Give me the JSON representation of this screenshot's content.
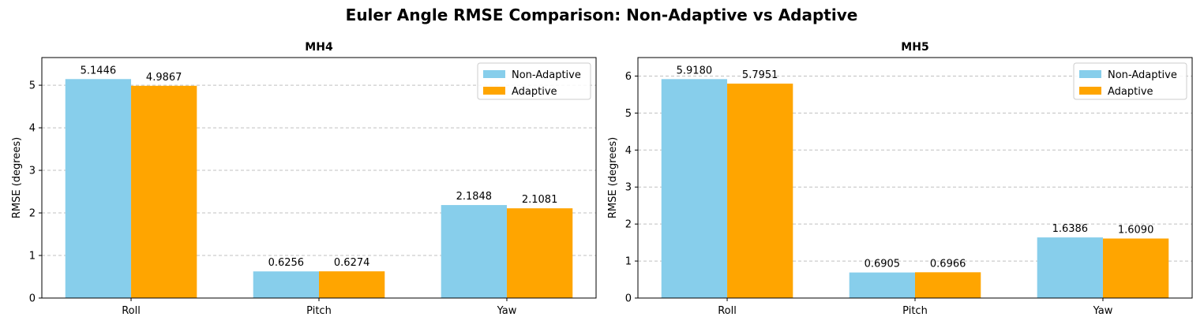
{
  "figure": {
    "suptitle": "Euler Angle RMSE Comparison: Non-Adaptive vs Adaptive"
  },
  "chart_data": [
    {
      "type": "bar",
      "title": "MH4",
      "xlabel": "",
      "ylabel": "RMSE (degrees)",
      "categories": [
        "Roll",
        "Pitch",
        "Yaw"
      ],
      "series": [
        {
          "name": "Non-Adaptive",
          "color": "#87ceeb",
          "values": [
            5.1446,
            0.6256,
            2.1848
          ]
        },
        {
          "name": "Adaptive",
          "color": "#ffa500",
          "values": [
            4.9867,
            0.6274,
            2.1081
          ]
        }
      ],
      "value_labels": [
        [
          "5.1446",
          "0.6256",
          "2.1848"
        ],
        [
          "4.9867",
          "0.6274",
          "2.1081"
        ]
      ],
      "ylim": [
        0,
        5.65
      ],
      "yticks": [
        0,
        1,
        2,
        3,
        4,
        5
      ],
      "grid": "y-dashed",
      "legend": "top-right"
    },
    {
      "type": "bar",
      "title": "MH5",
      "xlabel": "",
      "ylabel": "RMSE (degrees)",
      "categories": [
        "Roll",
        "Pitch",
        "Yaw"
      ],
      "series": [
        {
          "name": "Non-Adaptive",
          "color": "#87ceeb",
          "values": [
            5.918,
            0.6905,
            1.6386
          ]
        },
        {
          "name": "Adaptive",
          "color": "#ffa500",
          "values": [
            5.7951,
            0.6966,
            1.609
          ]
        }
      ],
      "value_labels": [
        [
          "5.9180",
          "0.6905",
          "1.6386"
        ],
        [
          "5.7951",
          "0.6966",
          "1.6090"
        ]
      ],
      "ylim": [
        0,
        6.5
      ],
      "yticks": [
        0,
        1,
        2,
        3,
        4,
        5,
        6
      ],
      "grid": "y-dashed",
      "legend": "top-right"
    }
  ]
}
